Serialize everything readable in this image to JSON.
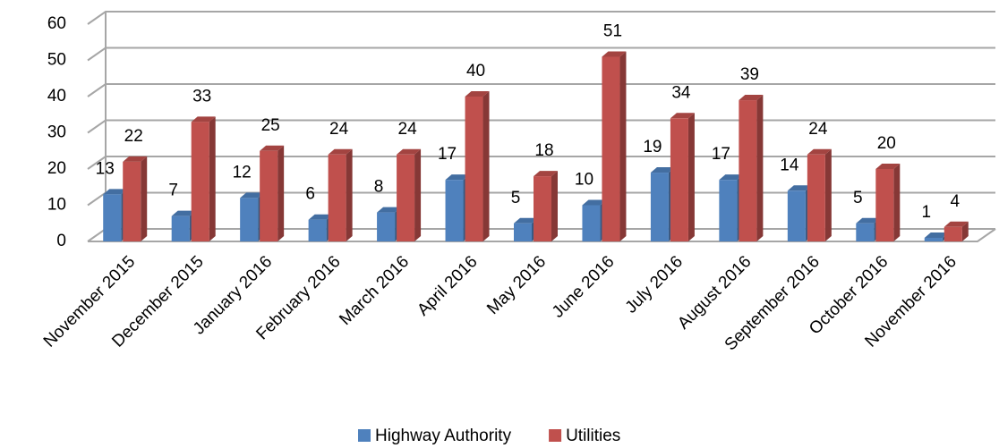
{
  "chart_data": {
    "type": "bar3d",
    "categories": [
      "November 2015",
      "December 2015",
      "January 2016",
      "February 2016",
      "March 2016",
      "April 2016",
      "May 2016",
      "June 2016",
      "July 2016",
      "August 2016",
      "September 2016",
      "October 2016",
      "November 2016"
    ],
    "series": [
      {
        "name": "Highway Authority",
        "color": "#4f81bd",
        "values": [
          13,
          7,
          12,
          6,
          8,
          17,
          5,
          10,
          19,
          17,
          14,
          5,
          1
        ]
      },
      {
        "name": "Utilities",
        "color": "#c0504d",
        "values": [
          22,
          33,
          25,
          24,
          24,
          40,
          18,
          51,
          34,
          39,
          24,
          20,
          4
        ]
      }
    ],
    "ylim": [
      0,
      60
    ],
    "yticks": [
      0,
      10,
      20,
      30,
      40,
      50,
      60
    ],
    "grid": true,
    "legend": "bottom"
  }
}
